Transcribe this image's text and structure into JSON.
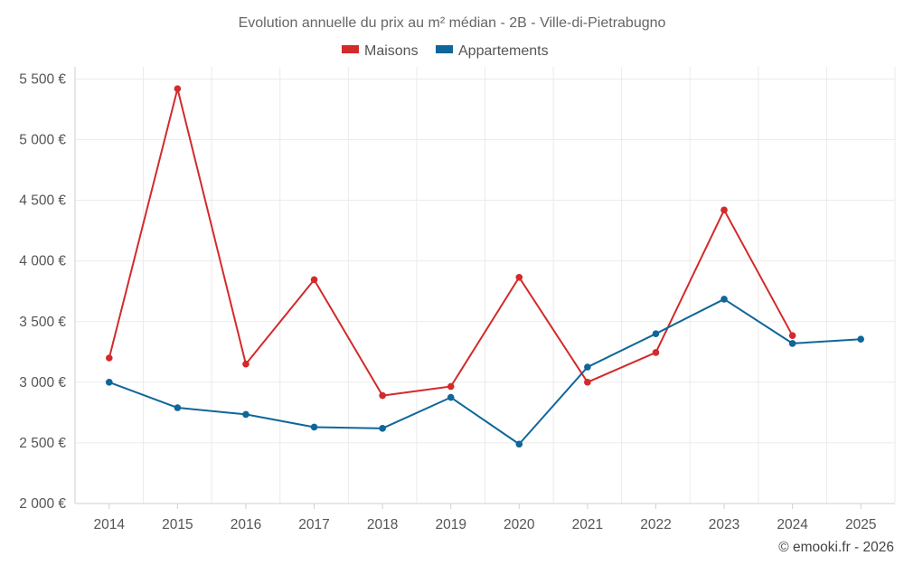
{
  "chart_data": {
    "type": "line",
    "title": "Evolution annuelle du prix au m² médian - 2B - Ville-di-Pietrabugno",
    "categories": [
      "2014",
      "2015",
      "2016",
      "2017",
      "2018",
      "2019",
      "2020",
      "2021",
      "2022",
      "2023",
      "2024",
      "2025"
    ],
    "series": [
      {
        "name": "Maisons",
        "color": "#d32a2a",
        "values": [
          3200,
          5420,
          3150,
          3845,
          2890,
          2965,
          3865,
          3000,
          3245,
          4420,
          3385,
          null
        ]
      },
      {
        "name": "Appartements",
        "color": "#0f6699",
        "values": [
          3000,
          2790,
          2735,
          2630,
          2620,
          2875,
          2490,
          3125,
          3400,
          3685,
          3320,
          3355
        ]
      }
    ],
    "ylim": [
      2000,
      5600
    ],
    "yticks": [
      2000,
      2500,
      3000,
      3500,
      4000,
      4500,
      5000,
      5500
    ],
    "ytick_labels": [
      "2 000 €",
      "2 500 €",
      "3 000 €",
      "3 500 €",
      "4 000 €",
      "4 500 €",
      "5 000 €",
      "5 500 €"
    ],
    "xlabel": "",
    "ylabel": "",
    "grid": true,
    "legend_position": "top-center"
  },
  "credit": "© emooki.fr - 2026"
}
